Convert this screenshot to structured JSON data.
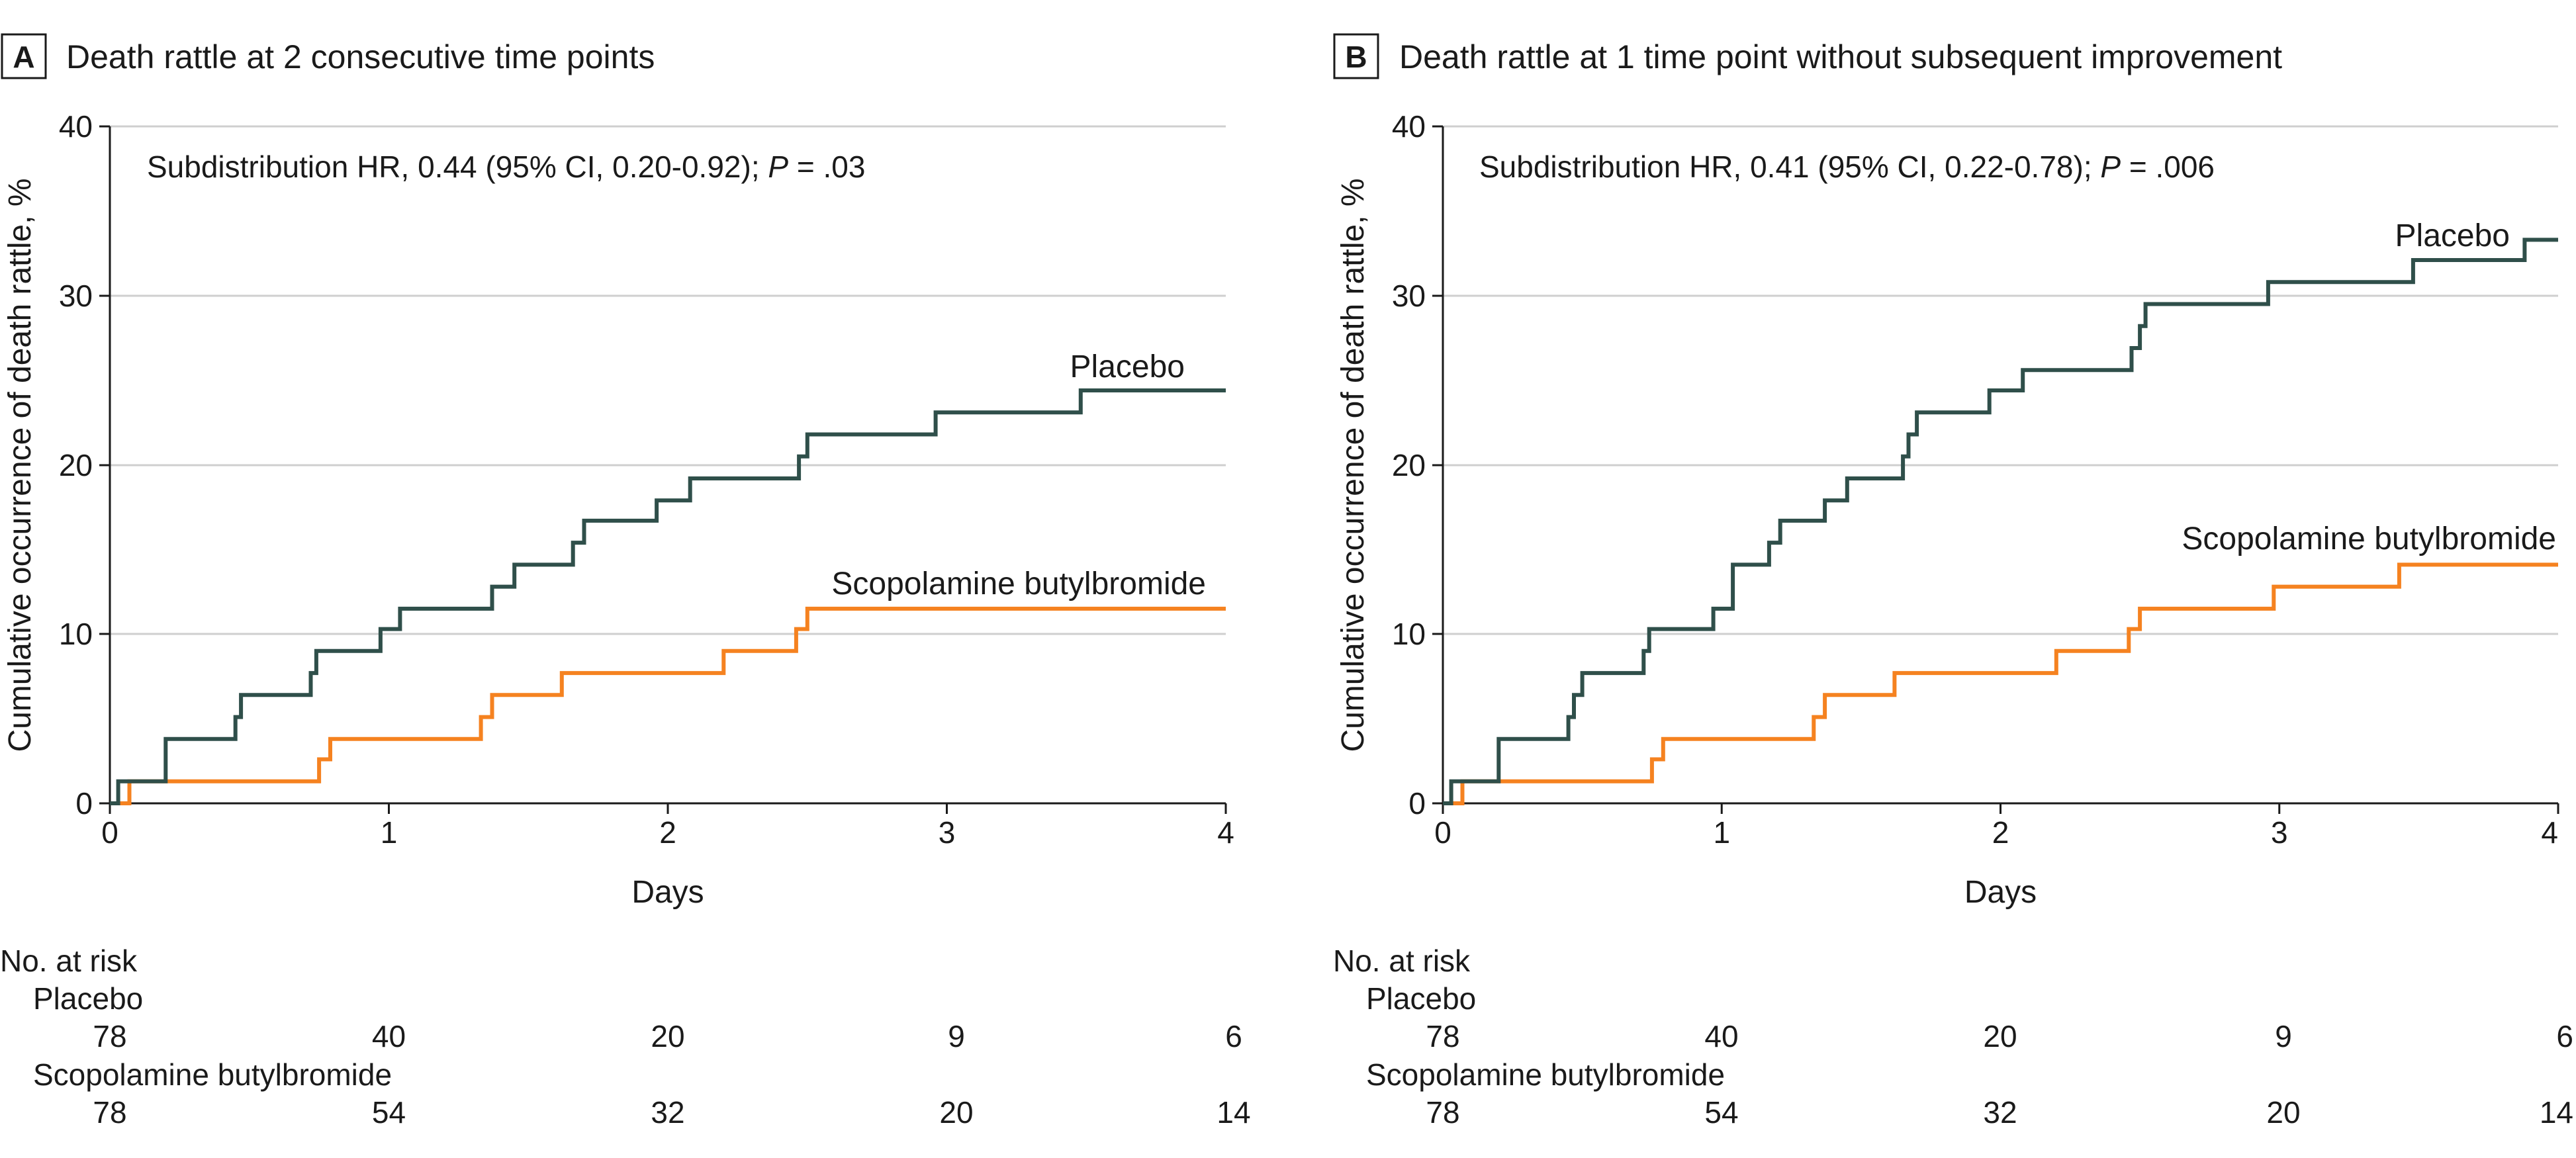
{
  "chart_data": [
    {
      "type": "line",
      "panel_label": "A",
      "title": "Death rattle at 2 consecutive time points",
      "annotation": "Subdistribution HR, 0.44 (95% CI, 0.20-0.92); ",
      "annotation_p_symbol": "P",
      "annotation_p_value": " = .03",
      "xlabel": "Days",
      "ylabel": "Cumulative occurrence of death rattle, %",
      "xlim": [
        0,
        4
      ],
      "ylim": [
        0,
        40
      ],
      "xticks": [
        "0",
        "1",
        "2",
        "3",
        "4"
      ],
      "yticks": [
        "0",
        "10",
        "20",
        "30",
        "40"
      ],
      "grid": true,
      "series": [
        {
          "name": "Placebo",
          "color": "#2f4f4a",
          "x": [
            0,
            0.03,
            0.07,
            0.2,
            0.45,
            0.47,
            0.72,
            0.74,
            0.97,
            1.04,
            1.37,
            1.45,
            1.66,
            1.7,
            1.96,
            2.08,
            2.47,
            2.5,
            2.96,
            3.48,
            4.0
          ],
          "y": [
            0,
            1.3,
            1.3,
            3.8,
            5.1,
            6.4,
            7.7,
            9.0,
            10.3,
            11.5,
            12.8,
            14.1,
            15.4,
            16.7,
            17.9,
            19.2,
            20.5,
            21.8,
            23.1,
            24.4,
            24.4
          ]
        },
        {
          "name": "Scopolamine butylbromide",
          "color": "#f58220",
          "x": [
            0,
            0.07,
            0.75,
            0.79,
            1.33,
            1.37,
            1.62,
            2.2,
            2.46,
            2.5,
            4.0
          ],
          "y": [
            0,
            1.3,
            2.6,
            3.8,
            5.1,
            6.4,
            7.7,
            9.0,
            10.3,
            11.5,
            11.5
          ]
        }
      ],
      "series_labels": [
        "Placebo",
        "Scopolamine butylbromide"
      ],
      "risk_table": {
        "title": "No. at risk",
        "groups": [
          {
            "name": "Placebo",
            "values": [
              "78",
              "40",
              "20",
              "9",
              "6"
            ]
          },
          {
            "name": "Scopolamine butylbromide",
            "values": [
              "78",
              "54",
              "32",
              "20",
              "14"
            ]
          }
        ]
      }
    },
    {
      "type": "line",
      "panel_label": "B",
      "title": "Death rattle at 1 time point without subsequent improvement",
      "annotation": "Subdistribution HR, 0.41 (95% CI, 0.22-0.78); ",
      "annotation_p_symbol": "P",
      "annotation_p_value": " = .006",
      "xlabel": "Days",
      "ylabel": "Cumulative occurrence of death rattle, %",
      "xlim": [
        0,
        4
      ],
      "ylim": [
        0,
        40
      ],
      "xticks": [
        "0",
        "1",
        "2",
        "3",
        "4"
      ],
      "yticks": [
        "0",
        "10",
        "20",
        "30",
        "40"
      ],
      "grid": true,
      "series": [
        {
          "name": "Placebo",
          "color": "#2f4f4a",
          "x": [
            0,
            0.03,
            0.07,
            0.2,
            0.45,
            0.47,
            0.5,
            0.72,
            0.74,
            0.97,
            1.04,
            1.17,
            1.21,
            1.37,
            1.45,
            1.65,
            1.67,
            1.7,
            1.96,
            2.08,
            2.47,
            2.5,
            2.52,
            2.96,
            3.48,
            3.88,
            4.0
          ],
          "y": [
            0,
            1.3,
            1.3,
            3.8,
            5.1,
            6.4,
            7.7,
            9.0,
            10.3,
            11.5,
            14.1,
            15.4,
            16.7,
            17.9,
            19.2,
            20.5,
            21.8,
            23.1,
            24.4,
            25.6,
            26.9,
            28.2,
            29.5,
            30.8,
            32.1,
            33.3,
            33.3
          ]
        },
        {
          "name": "Scopolamine butylbromide",
          "color": "#f58220",
          "x": [
            0,
            0.07,
            0.75,
            0.79,
            1.33,
            1.37,
            1.62,
            2.2,
            2.46,
            2.5,
            2.98,
            3.43,
            4.0
          ],
          "y": [
            0,
            1.3,
            2.6,
            3.8,
            5.1,
            6.4,
            7.7,
            9.0,
            10.3,
            11.5,
            12.8,
            14.1,
            14.1
          ]
        }
      ],
      "series_labels": [
        "Placebo",
        "Scopolamine butylbromide"
      ],
      "risk_table": {
        "title": "No. at risk",
        "groups": [
          {
            "name": "Placebo",
            "values": [
              "78",
              "40",
              "20",
              "9",
              "6"
            ]
          },
          {
            "name": "Scopolamine butylbromide",
            "values": [
              "78",
              "54",
              "32",
              "20",
              "14"
            ]
          }
        ]
      }
    }
  ]
}
